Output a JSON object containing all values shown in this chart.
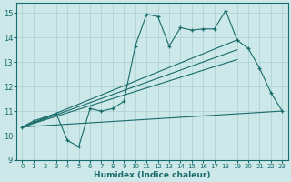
{
  "xlabel": "Humidex (Indice chaleur)",
  "xlim": [
    -0.5,
    23.5
  ],
  "ylim": [
    9,
    15.4
  ],
  "xticks": [
    0,
    1,
    2,
    3,
    4,
    5,
    6,
    7,
    8,
    9,
    10,
    11,
    12,
    13,
    14,
    15,
    16,
    17,
    18,
    19,
    20,
    21,
    22,
    23
  ],
  "yticks": [
    9,
    10,
    11,
    12,
    13,
    14,
    15
  ],
  "bg_color": "#cce8e8",
  "grid_color": "#aacfcf",
  "line_color": "#1a6b6b",
  "series": {
    "jagged": {
      "x": [
        0,
        1,
        2,
        3,
        4,
        5,
        6,
        7,
        8,
        9,
        10,
        11,
        12,
        13,
        14,
        15,
        16,
        17,
        18,
        19,
        20,
        21,
        22,
        23
      ],
      "y": [
        10.35,
        10.6,
        10.75,
        10.9,
        9.8,
        9.55,
        11.1,
        11.0,
        11.1,
        11.4,
        13.65,
        14.95,
        14.85,
        13.65,
        14.4,
        14.3,
        14.35,
        14.35,
        15.1,
        13.9,
        13.55,
        12.75,
        11.75,
        11.0
      ]
    },
    "line_top": {
      "x": [
        0,
        19
      ],
      "y": [
        10.35,
        13.9
      ]
    },
    "line_mid1": {
      "x": [
        0,
        19
      ],
      "y": [
        10.35,
        13.5
      ]
    },
    "line_mid2": {
      "x": [
        0,
        19
      ],
      "y": [
        10.35,
        13.1
      ]
    },
    "line_bottom": {
      "x": [
        0,
        23
      ],
      "y": [
        10.35,
        11.0
      ]
    }
  }
}
